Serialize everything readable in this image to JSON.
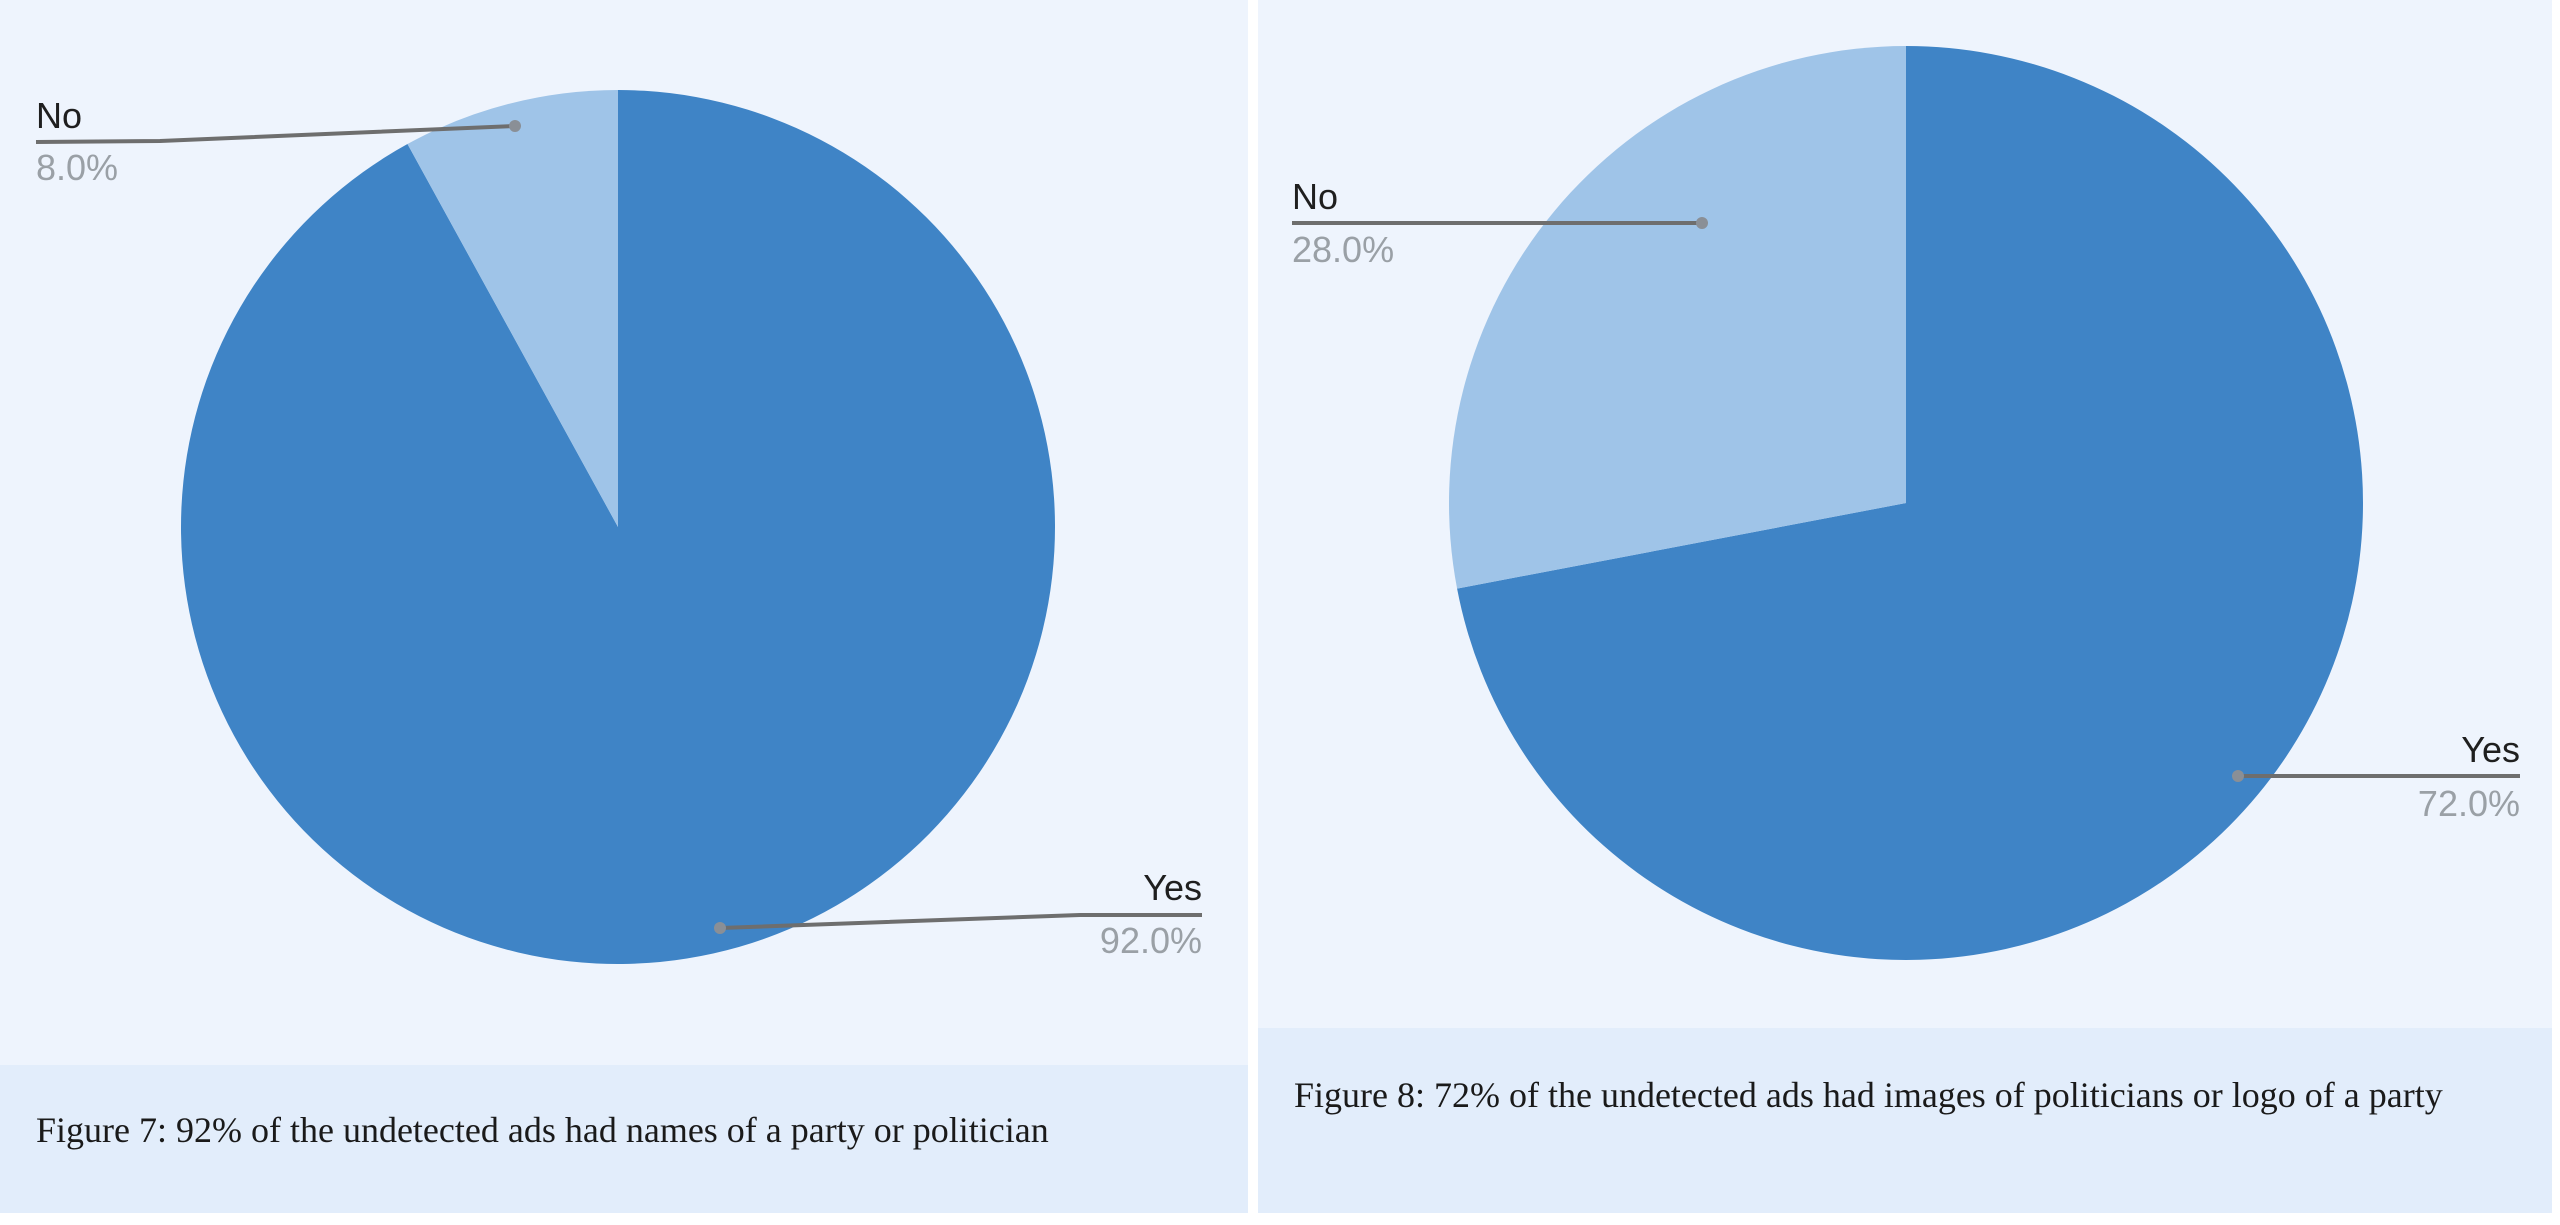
{
  "colors": {
    "yes": "#3f84c6",
    "no": "#9fc4e8",
    "leader": "#6e6e6e",
    "panel_bg": "#eef4fd",
    "caption_bg": "#e2edfb"
  },
  "chart_data": [
    {
      "type": "pie",
      "slices": [
        {
          "label": "Yes",
          "value": 92.0,
          "display": "92.0%"
        },
        {
          "label": "No",
          "value": 8.0,
          "display": "8.0%"
        }
      ],
      "caption": "Figure 7: 92% of the undetected ads had names of a party or politician"
    },
    {
      "type": "pie",
      "slices": [
        {
          "label": "Yes",
          "value": 72.0,
          "display": "72.0%"
        },
        {
          "label": "No",
          "value": 28.0,
          "display": "28.0%"
        }
      ],
      "caption": "Figure 8: 72% of the undetected ads had images of politicians or logo of a party"
    }
  ]
}
